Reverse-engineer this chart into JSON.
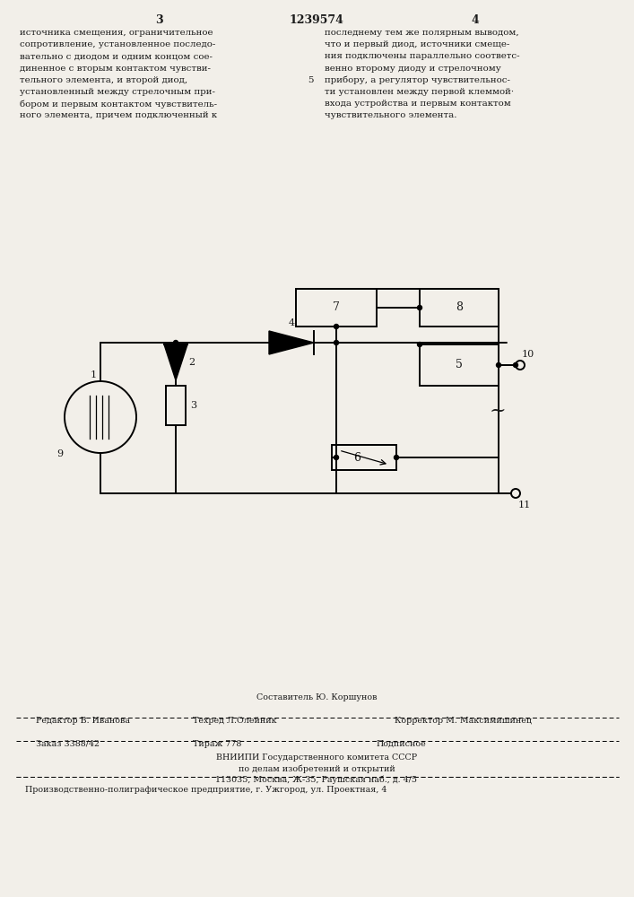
{
  "bg_color": "#f2efe9",
  "text_color": "#1a1a1a",
  "page_number_left": "3",
  "patent_number": "1239574",
  "page_number_right": "4",
  "col_left_text": [
    "источника смещения, ограничительное",
    "сопротивление, установленное последо-",
    "вательно с диодом и одним концом сое-",
    "диненное с вторым контактом чувстви-",
    "тельного элемента, и второй диод,",
    "установленный между стрелочным при-",
    "бором и первым контактом чувствитель-",
    "ного элемента, причем подключенный к"
  ],
  "col_right_text": [
    "последнему тем же полярным выводом,",
    "что и первый диод, источники смеще-",
    "ния подключены параллельно соответс-",
    "венно второму диоду и стрелочному",
    "прибору, а регулятор чувствительнос-",
    "ти установлен между первой клеммой·",
    "входа устройства и первым контактом",
    "чувствительного элемента."
  ],
  "footer_sestavitel": "Составитель Ю. Коршунов",
  "footer_redaktor": "Редактор В. Иванова",
  "footer_tehred": "Техред Л.Олейник",
  "footer_korrektor": "Корректор М. Максимишинец",
  "footer_zakaz": "Заказ 3388/42",
  "footer_tirazh": "Тираж 778",
  "footer_podpisnoe": "Подписное",
  "footer_vnipi": "ВНИИПИ Государственного комитета СССР",
  "footer_po_delam": "по делам изобретений и открытий",
  "footer_address": "113035, Москва, Ж-35, Раушская наб., д. 4/5",
  "footer_proizv": "Производственно-полиграфическое предприятие, г. Ужгород, ул. Проектная, 4"
}
